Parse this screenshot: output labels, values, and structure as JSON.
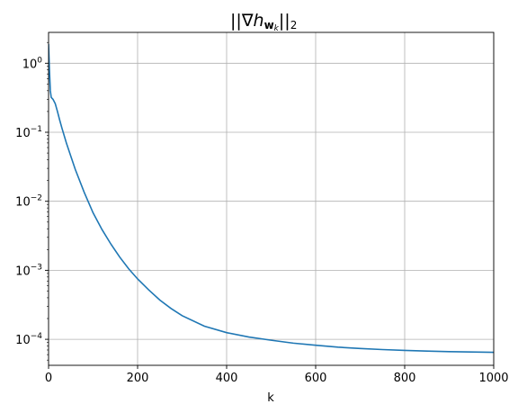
{
  "chart_data": {
    "type": "line",
    "title": "||∇h_{w_k}||₂",
    "title_parts": {
      "bars_left": "||",
      "nabla": "∇",
      "h": "h",
      "w": "w",
      "k": "k",
      "bars_right": "||",
      "two": "2"
    },
    "xlabel": "k",
    "ylabel": "",
    "xlim": [
      0,
      1000
    ],
    "ylim": [
      4.2e-05,
      2.8
    ],
    "yscale": "log",
    "grid": true,
    "xticks": [
      {
        "value": 0,
        "label": "0"
      },
      {
        "value": 200,
        "label": "200"
      },
      {
        "value": 400,
        "label": "400"
      },
      {
        "value": 600,
        "label": "600"
      },
      {
        "value": 800,
        "label": "800"
      },
      {
        "value": 1000,
        "label": "1000"
      }
    ],
    "yticks": [
      {
        "value": 1,
        "base": "10",
        "exp": "0"
      },
      {
        "value": 0.1,
        "base": "10",
        "exp": "−1"
      },
      {
        "value": 0.01,
        "base": "10",
        "exp": "−2"
      },
      {
        "value": 0.001,
        "base": "10",
        "exp": "−3"
      },
      {
        "value": 0.0001,
        "base": "10",
        "exp": "−4"
      }
    ],
    "series": [
      {
        "color": "#1f77b4",
        "x": [
          0,
          2,
          4,
          6,
          10,
          15,
          20,
          25,
          30,
          40,
          50,
          60,
          80,
          100,
          120,
          140,
          160,
          180,
          200,
          225,
          250,
          275,
          300,
          350,
          400,
          450,
          500,
          550,
          600,
          650,
          700,
          750,
          800,
          850,
          900,
          950,
          1000
        ],
        "y": [
          1.9,
          0.8,
          0.4,
          0.32,
          0.3,
          0.26,
          0.2,
          0.15,
          0.115,
          0.07,
          0.045,
          0.029,
          0.0135,
          0.0068,
          0.0039,
          0.0024,
          0.00155,
          0.00105,
          0.00075,
          0.00052,
          0.00037,
          0.00028,
          0.00022,
          0.000155,
          0.000125,
          0.000108,
          9.7e-05,
          8.8e-05,
          8.2e-05,
          7.7e-05,
          7.35e-05,
          7.1e-05,
          6.9e-05,
          6.75e-05,
          6.63e-05,
          6.55e-05,
          6.48e-05
        ]
      }
    ]
  }
}
